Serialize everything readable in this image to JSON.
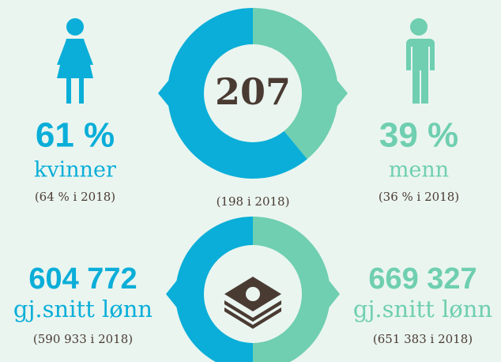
{
  "chart_data": {
    "type": "donut",
    "title": "207",
    "subtitle": "(198 i 2018)",
    "categories": [
      "kvinner",
      "menn"
    ],
    "values": [
      61,
      39
    ],
    "value_labels": [
      "61 %",
      "39 %"
    ],
    "notes": [
      "(64 % i 2018)",
      "(36 % i 2018)"
    ],
    "colors": [
      "#0aaed8",
      "#6fcfb0"
    ]
  },
  "salary": {
    "left": {
      "value": "604 772",
      "label": "gj.snitt lønn",
      "note": "(590 933 i 2018)"
    },
    "right": {
      "value": "669 327",
      "label": "gj.snitt lønn",
      "note": "(651 383 i 2018)"
    }
  }
}
